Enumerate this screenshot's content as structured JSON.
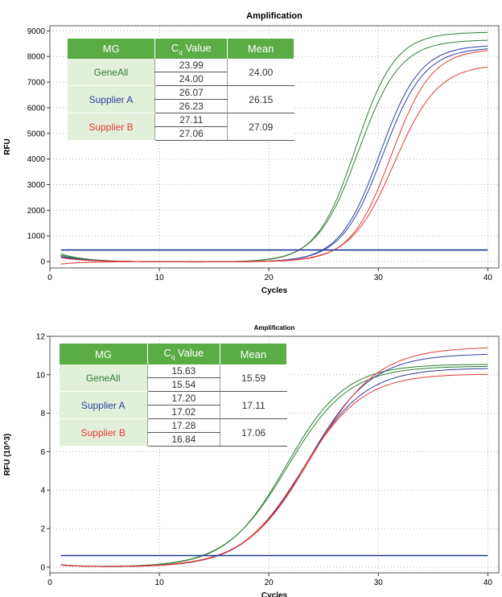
{
  "chart_data": [
    {
      "type": "line",
      "title": "Amplification",
      "xlabel": "Cycles",
      "ylabel": "RFU",
      "xlim": [
        0,
        41
      ],
      "ylim": [
        -250,
        9200
      ],
      "xticks": [
        0,
        10,
        20,
        30,
        40
      ],
      "yticks": [
        0,
        1000,
        2000,
        3000,
        4000,
        5000,
        6000,
        7000,
        8000,
        9000
      ],
      "grid": true,
      "threshold": 450,
      "threshold_color": "#1f3a93",
      "series": [
        {
          "color": "#2e7d32",
          "cq": 23.99,
          "plateau": 8950,
          "slope": 1.8,
          "baseline_start": 300
        },
        {
          "color": "#2e7d32",
          "cq": 24.0,
          "plateau": 8650,
          "slope": 1.9,
          "baseline_start": 250
        },
        {
          "color": "#2a3f9e",
          "cq": 26.07,
          "plateau": 8450,
          "slope": 1.85,
          "baseline_start": 200
        },
        {
          "color": "#2a3f9e",
          "cq": 26.23,
          "plateau": 8350,
          "slope": 1.9,
          "baseline_start": 180
        },
        {
          "color": "#e53935",
          "cq": 27.11,
          "plateau": 8300,
          "slope": 1.85,
          "baseline_start": 150
        },
        {
          "color": "#e53935",
          "cq": 27.06,
          "plateau": 7700,
          "slope": 2.0,
          "baseline_start": -100
        }
      ],
      "table": {
        "headers": [
          "MG",
          "Cq Value",
          "Mean"
        ],
        "rows": [
          {
            "name": "GeneAll",
            "color": "#2e7d32",
            "values": [
              "23.99",
              "24.00"
            ],
            "mean": "24.00"
          },
          {
            "name": "Supplier A",
            "color": "#2a3f9e",
            "values": [
              "26.07",
              "26.23"
            ],
            "mean": "26.15"
          },
          {
            "name": "Supplier B",
            "color": "#e53935",
            "values": [
              "27.11",
              "27.06"
            ],
            "mean": "27.09"
          }
        ]
      }
    },
    {
      "type": "line",
      "title": "Amplification",
      "xlabel": "Cycles",
      "ylabel": "RFU (10^3)",
      "xlim": [
        0,
        41
      ],
      "ylim": [
        -0.3,
        12
      ],
      "xticks": [
        0,
        10,
        20,
        30,
        40
      ],
      "yticks": [
        0,
        2,
        4,
        6,
        8,
        10,
        12
      ],
      "grid": true,
      "threshold": 0.6,
      "threshold_color": "#1f3a93",
      "series": [
        {
          "color": "#2e7d32",
          "cq": 15.63,
          "plateau": 10.55,
          "slope": 2.7,
          "baseline_start": 0.12
        },
        {
          "color": "#2e7d32",
          "cq": 15.54,
          "plateau": 10.45,
          "slope": 2.8,
          "baseline_start": 0.1
        },
        {
          "color": "#2a3f9e",
          "cq": 17.2,
          "plateau": 11.1,
          "slope": 2.9,
          "baseline_start": 0.1
        },
        {
          "color": "#2a3f9e",
          "cq": 17.02,
          "plateau": 10.35,
          "slope": 2.8,
          "baseline_start": 0.1
        },
        {
          "color": "#e53935",
          "cq": 17.28,
          "plateau": 11.45,
          "slope": 3.0,
          "baseline_start": 0.1
        },
        {
          "color": "#e53935",
          "cq": 16.84,
          "plateau": 10.05,
          "slope": 2.8,
          "baseline_start": 0.1
        }
      ],
      "table": {
        "headers": [
          "MG",
          "Cq Value",
          "Mean"
        ],
        "rows": [
          {
            "name": "GeneAll",
            "color": "#2e7d32",
            "values": [
              "15.63",
              "15.54"
            ],
            "mean": "15.59"
          },
          {
            "name": "Supplier A",
            "color": "#2a3f9e",
            "values": [
              "17.20",
              "17.02"
            ],
            "mean": "17.11"
          },
          {
            "name": "Supplier B",
            "color": "#e53935",
            "values": [
              "17.28",
              "16.84"
            ],
            "mean": "17.06"
          }
        ]
      }
    }
  ]
}
